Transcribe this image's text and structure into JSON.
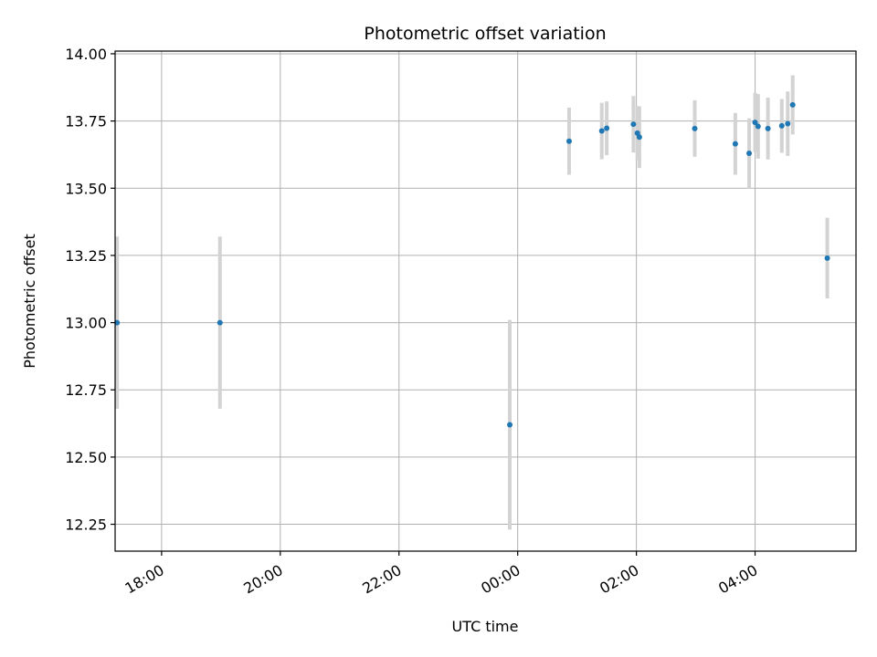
{
  "chart_data": {
    "type": "scatter",
    "title": "Photometric offset variation",
    "xlabel": "UTC time",
    "ylabel": "Photometric offset",
    "x_axis": {
      "kind": "time",
      "min": "17:13",
      "max": "05:42",
      "ticks": [
        "18:00",
        "20:00",
        "22:00",
        "00:00",
        "02:00",
        "04:00"
      ]
    },
    "y_axis": {
      "min": 12.15,
      "max": 14.01,
      "ticks": [
        "12.25",
        "12.50",
        "12.75",
        "13.00",
        "13.25",
        "13.50",
        "13.75",
        "14.00"
      ]
    },
    "grid": true,
    "marker_color": "#1f77b4",
    "errorbar_color": "#d3d3d3",
    "points": [
      {
        "x": "17:15",
        "y": 13.0,
        "yerr": 0.32
      },
      {
        "x": "18:59",
        "y": 13.0,
        "yerr": 0.32
      },
      {
        "x": "23:52",
        "y": 12.62,
        "yerr": 0.39
      },
      {
        "x": "00:52",
        "y": 13.675,
        "yerr": 0.125
      },
      {
        "x": "01:25",
        "y": 13.713,
        "yerr": 0.105
      },
      {
        "x": "01:30",
        "y": 13.723,
        "yerr": 0.1
      },
      {
        "x": "01:57",
        "y": 13.738,
        "yerr": 0.105
      },
      {
        "x": "02:01",
        "y": 13.705,
        "yerr": 0.1
      },
      {
        "x": "02:03",
        "y": 13.69,
        "yerr": 0.115
      },
      {
        "x": "02:59",
        "y": 13.722,
        "yerr": 0.105
      },
      {
        "x": "03:40",
        "y": 13.665,
        "yerr": 0.115
      },
      {
        "x": "03:54",
        "y": 13.63,
        "yerr": 0.13
      },
      {
        "x": "04:00",
        "y": 13.745,
        "yerr": 0.11
      },
      {
        "x": "04:03",
        "y": 13.73,
        "yerr": 0.12
      },
      {
        "x": "04:13",
        "y": 13.722,
        "yerr": 0.115
      },
      {
        "x": "04:27",
        "y": 13.732,
        "yerr": 0.1
      },
      {
        "x": "04:33",
        "y": 13.74,
        "yerr": 0.12
      },
      {
        "x": "04:38",
        "y": 13.81,
        "yerr": 0.11
      },
      {
        "x": "05:13",
        "y": 13.24,
        "yerr": 0.15
      }
    ]
  }
}
